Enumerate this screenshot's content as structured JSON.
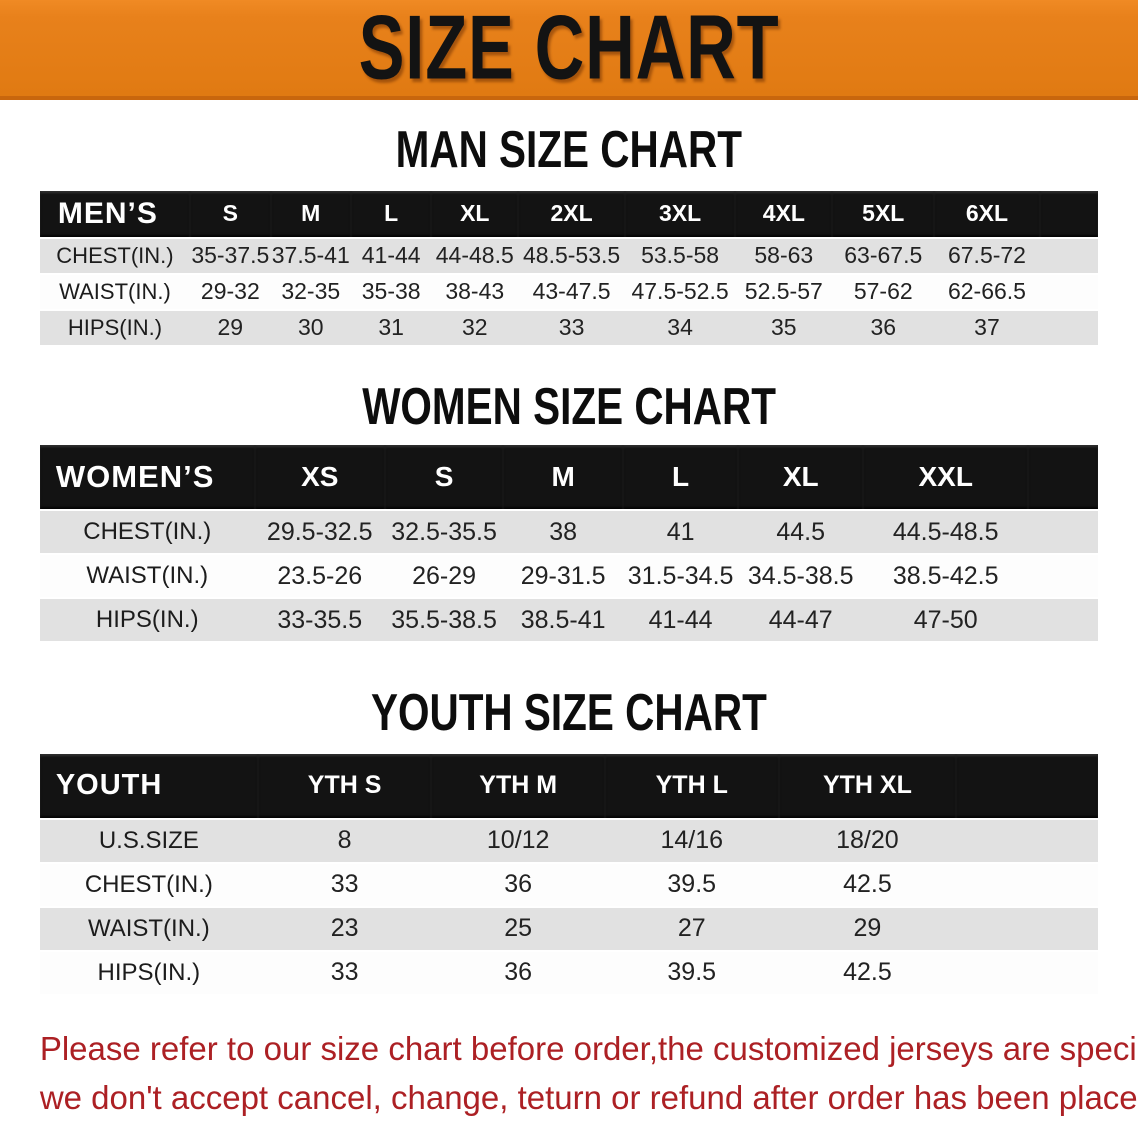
{
  "banner": {
    "title": "SIZE CHART"
  },
  "sections": [
    {
      "heading": "MAN SIZE CHART",
      "table": {
        "name": "men-size-table",
        "corner_label": "MEN’S",
        "columns": [
          "S",
          "M",
          "L",
          "XL",
          "2XL",
          "3XL",
          "4XL",
          "5XL",
          "6XL"
        ],
        "rows": [
          {
            "label": "CHEST(IN.)",
            "values": [
              "35-37.5",
              "37.5-41",
              "41-44",
              "44-48.5",
              "48.5-53.5",
              "53.5-58",
              "58-63",
              "63-67.5",
              "67.5-72"
            ]
          },
          {
            "label": "WAIST(IN.)",
            "values": [
              "29-32",
              "32-35",
              "35-38",
              "38-43",
              "43-47.5",
              "47.5-52.5",
              "52.5-57",
              "57-62",
              "62-66.5"
            ]
          },
          {
            "label": "HIPS(IN.)",
            "values": [
              "29",
              "30",
              "31",
              "32",
              "33",
              "34",
              "35",
              "36",
              "37"
            ]
          }
        ]
      }
    },
    {
      "heading": "WOMEN SIZE CHART",
      "table": {
        "name": "women-size-table",
        "corner_label": "WOMEN’S",
        "columns": [
          "XS",
          "S",
          "M",
          "L",
          "XL",
          "XXL"
        ],
        "rows": [
          {
            "label": "CHEST(IN.)",
            "values": [
              "29.5-32.5",
              "32.5-35.5",
              "38",
              "41",
              "44.5",
              "44.5-48.5"
            ]
          },
          {
            "label": "WAIST(IN.)",
            "values": [
              "23.5-26",
              "26-29",
              "29-31.5",
              "31.5-34.5",
              "34.5-38.5",
              "38.5-42.5"
            ]
          },
          {
            "label": "HIPS(IN.)",
            "values": [
              "33-35.5",
              "35.5-38.5",
              "38.5-41",
              "41-44",
              "44-47",
              "47-50"
            ]
          }
        ]
      }
    },
    {
      "heading": "YOUTH SIZE CHART",
      "table": {
        "name": "youth-size-table",
        "corner_label": "YOUTH",
        "columns": [
          "YTH S",
          "YTH M",
          "YTH L",
          "YTH XL"
        ],
        "rows": [
          {
            "label": "U.S.SIZE",
            "values": [
              "8",
              "10/12",
              "14/16",
              "18/20"
            ]
          },
          {
            "label": "CHEST(IN.)",
            "values": [
              "33",
              "36",
              "39.5",
              "42.5"
            ]
          },
          {
            "label": "WAIST(IN.)",
            "values": [
              "23",
              "25",
              "27",
              "29"
            ]
          },
          {
            "label": "HIPS(IN.)",
            "values": [
              "33",
              "36",
              "39.5",
              "42.5"
            ]
          }
        ]
      }
    }
  ],
  "footer": {
    "line1": "Please refer to our size chart before order,the customized jerseys are special products,",
    "line2": "we don't accept cancel, change, teturn or refund after order has been placed!"
  },
  "colors": {
    "banner_orange": "#E8811B",
    "header_black": "#131313",
    "stripe_gray": "#E1E1E1",
    "note_red": "#AC2024"
  }
}
